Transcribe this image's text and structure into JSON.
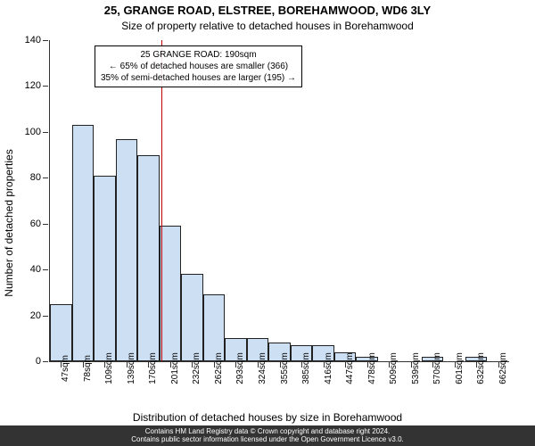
{
  "title": "25, GRANGE ROAD, ELSTREE, BOREHAMWOOD, WD6 3LY",
  "subtitle": "Size of property relative to detached houses in Borehamwood",
  "ylabel": "Number of detached properties",
  "xlabel": "Distribution of detached houses by size in Borehamwood",
  "footer_line1": "Contains HM Land Registry data © Crown copyright and database right 2024.",
  "footer_line2": "Contains public sector information licensed under the Open Government Licence v3.0.",
  "annotation": {
    "line1": "25 GRANGE ROAD: 190sqm",
    "line2": "← 65% of detached houses are smaller (366)",
    "line3": "35% of semi-detached houses are larger (195) →"
  },
  "chart": {
    "type": "histogram",
    "ylim": [
      0,
      140
    ],
    "ytick_step": 20,
    "bar_fill": "#cddff3",
    "bar_border": "#222222",
    "vline_color": "#c00000",
    "vline_x_index": 4.6,
    "bar_width_rel": 1.0,
    "categories": [
      "47sqm",
      "78sqm",
      "109sqm",
      "139sqm",
      "170sqm",
      "201sqm",
      "232sqm",
      "262sqm",
      "293sqm",
      "324sqm",
      "355sqm",
      "385sqm",
      "416sqm",
      "447sqm",
      "478sqm",
      "509sqm",
      "539sqm",
      "570sqm",
      "601sqm",
      "632sqm",
      "662sqm"
    ],
    "values": [
      25,
      103,
      81,
      97,
      90,
      59,
      38,
      29,
      10,
      10,
      8,
      7,
      7,
      4,
      2,
      0,
      0,
      2,
      0,
      2,
      0
    ]
  }
}
